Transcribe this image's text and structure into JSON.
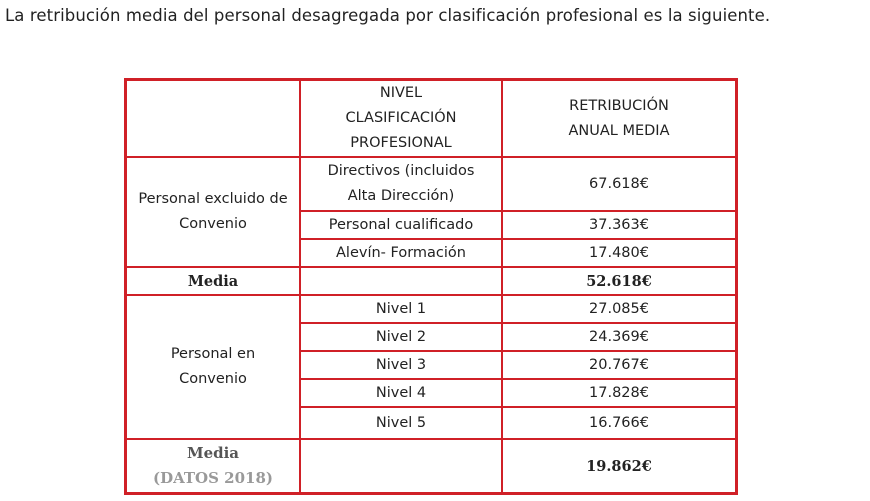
{
  "intro": "La retribución media del personal desagregada por clasificación profesional es la siguiente.",
  "header": {
    "col1": "",
    "col2": [
      "NIVEL",
      "CLASIFICACIÓN",
      "PROFESIONAL"
    ],
    "col3": [
      "RETRIBUCIÓN",
      "ANUAL MEDIA"
    ]
  },
  "excluded": {
    "group_label": [
      "Personal excluido de",
      "Convenio"
    ],
    "rows": [
      {
        "level": [
          "Directivos (incluidos",
          "Alta Dirección)"
        ],
        "value": "67.618€"
      },
      {
        "level": [
          "Personal cualificado"
        ],
        "value": "37.363€"
      },
      {
        "level": [
          "Alevín- Formación"
        ],
        "value": "17.480€"
      }
    ],
    "media_label": "Media",
    "media_value": "52.618€"
  },
  "convenio": {
    "group_label": [
      "Personal en",
      "Convenio"
    ],
    "rows": [
      {
        "level": "Nivel 1",
        "value": "27.085€"
      },
      {
        "level": "Nivel 2",
        "value": "24.369€"
      },
      {
        "level": "Nivel 3",
        "value": "20.767€"
      },
      {
        "level": "Nivel 4",
        "value": "17.828€"
      },
      {
        "level": "Nivel 5",
        "value": "16.766€"
      }
    ],
    "media_label": "Media",
    "media_sub": "(DATOS 2018)",
    "media_value": "19.862€"
  },
  "colors": {
    "border": "#d02027",
    "text": "#222222",
    "bold_text": "#666666",
    "muted": "#999999"
  }
}
